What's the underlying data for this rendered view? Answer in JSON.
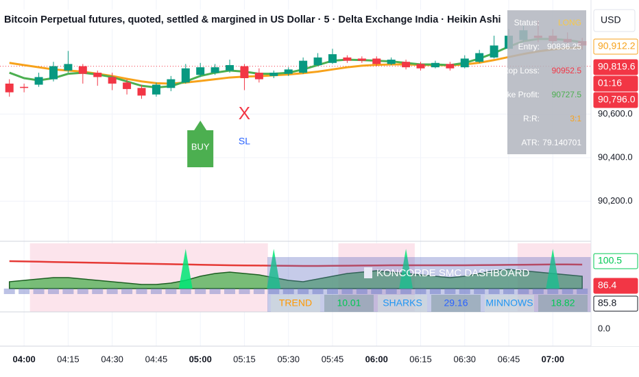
{
  "chart_data": [
    {
      "type": "candlestick",
      "title": "Bitcoin Perpetual futures, quoted, settled & margined in US Dollar · 5 · Delta Exchange India · Heikin Ashi",
      "currency": "USD",
      "x": [
        -5,
        0,
        5,
        10,
        15,
        20,
        25,
        30,
        35,
        40,
        45,
        50,
        55,
        60,
        65,
        70,
        75,
        80,
        85,
        90,
        95,
        100,
        105,
        110,
        115,
        120,
        125,
        130,
        135,
        140,
        145,
        150,
        155,
        160,
        165,
        170,
        175,
        180,
        185,
        190
      ],
      "open": [
        90740,
        90725,
        90735,
        90760,
        90800,
        90820,
        90790,
        90770,
        90745,
        90720,
        90690,
        90720,
        90745,
        90780,
        90790,
        90800,
        90820,
        90790,
        90775,
        90785,
        90790,
        90825,
        90835,
        90860,
        90855,
        90855,
        90830,
        90840,
        90830,
        90815,
        90830,
        90815,
        90840,
        90860,
        90900,
        90940,
        90960,
        90960,
        90945,
        90935
      ],
      "high": [
        90760,
        90740,
        90790,
        90840,
        90890,
        90830,
        90800,
        90790,
        90760,
        90735,
        90745,
        90775,
        90830,
        90835,
        90830,
        90850,
        90830,
        90810,
        90800,
        90815,
        90860,
        90880,
        90900,
        90870,
        90865,
        90865,
        90860,
        90850,
        90840,
        90845,
        90840,
        90870,
        90895,
        90960,
        90990,
        91010,
        91030,
        90990,
        90975,
        90950
      ],
      "low": [
        90680,
        90700,
        90725,
        90750,
        90790,
        90740,
        90730,
        90710,
        90690,
        90670,
        90680,
        90705,
        90740,
        90770,
        90780,
        90790,
        90710,
        90745,
        90765,
        90775,
        90785,
        90820,
        90830,
        90835,
        90835,
        90820,
        90825,
        90805,
        90800,
        90810,
        90800,
        90810,
        90835,
        90855,
        90895,
        90930,
        90930,
        90915,
        90915,
        90895
      ],
      "close": [
        90700,
        90720,
        90770,
        90820,
        90830,
        90785,
        90770,
        90740,
        90715,
        90685,
        90735,
        90760,
        90810,
        90815,
        90815,
        90825,
        90765,
        90760,
        90790,
        90805,
        90845,
        90860,
        90875,
        90845,
        90845,
        90830,
        90850,
        90815,
        90810,
        90835,
        90810,
        90855,
        90880,
        90915,
        90960,
        90985,
        90950,
        90935,
        90930,
        90915
      ],
      "up_color": "#089981",
      "down_color": "#f23645",
      "lines": [
        {
          "color": "#f7a21b",
          "values": [
            90835,
            90825,
            90815,
            90805,
            90800,
            90795,
            90785,
            90775,
            90762,
            90750,
            90742,
            90740,
            90745,
            90752,
            90760,
            90768,
            90772,
            90774,
            90778,
            90782,
            90788,
            90795,
            90805,
            90815,
            90822,
            90826,
            90828,
            90828,
            90826,
            90825,
            90824,
            90828,
            90836,
            90848,
            90862,
            90876,
            90888,
            90897,
            90903,
            90906
          ]
        },
        {
          "color": "#4caf50",
          "values": [
            90790,
            90765,
            90755,
            90765,
            90785,
            90790,
            90782,
            90770,
            90750,
            90730,
            90722,
            90728,
            90750,
            90775,
            90790,
            90800,
            90795,
            90785,
            90785,
            90790,
            90805,
            90825,
            90845,
            90850,
            90848,
            90845,
            90842,
            90835,
            90828,
            90828,
            90825,
            90835,
            90855,
            90880,
            90910,
            90935,
            90945,
            90945,
            90940,
            90930
          ]
        }
      ],
      "xlim": [
        -8.2,
        193
      ],
      "ylim": [
        90022,
        91124
      ],
      "yticks": [
        {
          "value": 90200,
          "label": "90,200.0"
        },
        {
          "value": 90400,
          "label": "90,400.0"
        },
        {
          "value": 90600,
          "label": "90,600.0"
        }
      ],
      "xticks": [
        {
          "value": 0,
          "label": "04:00"
        },
        {
          "value": 15,
          "label": "04:15"
        },
        {
          "value": 30,
          "label": "04:30"
        },
        {
          "value": 45,
          "label": "04:45"
        },
        {
          "value": 60,
          "label": "05:00"
        },
        {
          "value": 75,
          "label": "05:15"
        },
        {
          "value": 90,
          "label": "05:30"
        },
        {
          "value": 105,
          "label": "05:45"
        },
        {
          "value": 120,
          "label": "06:00"
        },
        {
          "value": 135,
          "label": "06:15"
        },
        {
          "value": 150,
          "label": "06:30"
        },
        {
          "value": 165,
          "label": "06:45"
        },
        {
          "value": 180,
          "label": "07:00"
        }
      ],
      "grid": true,
      "current_price": 90819.6,
      "price_tags": [
        {
          "label": "90,912.2",
          "color": "#f7a21b",
          "style": "outline"
        },
        {
          "label": "90,819.6",
          "color": "#f23645",
          "style": "filled"
        },
        {
          "label": "01:16",
          "color": "#f23645",
          "style": "filled"
        },
        {
          "label": "90,796.0",
          "color": "#f23645",
          "style": "filled"
        }
      ],
      "signals": [
        {
          "text": "BUY",
          "x": 60,
          "color": "#4caf50"
        },
        {
          "text": "X",
          "x": 75,
          "color": "#f23645"
        },
        {
          "text": "SL",
          "x": 75,
          "color": "#2962ff"
        }
      ],
      "info_table": [
        [
          "Status:",
          "LONG",
          "#f7c948"
        ],
        [
          "Entry:",
          "90836.25",
          "#ffffff"
        ],
        [
          "Stop Loss:",
          "90952.5",
          "#f23645"
        ],
        [
          "Take Profit:",
          "90727.5",
          "#4caf50"
        ],
        [
          "R:R:",
          "3:1",
          "#f7a21b"
        ],
        [
          "ATR:",
          "79.140701",
          "#ffffff"
        ]
      ]
    },
    {
      "type": "area",
      "x": [
        -5,
        0,
        5,
        10,
        15,
        20,
        25,
        30,
        35,
        40,
        45,
        50,
        55,
        60,
        65,
        70,
        75,
        80,
        85,
        90,
        95,
        100,
        105,
        110,
        115,
        120,
        125,
        130,
        135,
        140,
        145,
        150,
        155,
        160,
        165,
        170,
        175,
        180,
        185,
        190
      ],
      "series": [
        {
          "color": "#4caf50",
          "values": [
            82,
            83,
            84,
            85,
            85,
            84,
            83,
            82,
            81,
            80,
            80,
            81,
            83,
            86,
            88,
            89,
            88,
            87,
            85,
            83,
            82,
            84,
            86,
            88,
            89,
            90,
            89,
            88,
            87,
            86,
            85,
            86,
            88,
            90,
            91,
            90,
            89,
            88,
            87,
            86
          ]
        },
        {
          "color": "#e53935",
          "values": [
            97,
            96.8,
            96.6,
            96.4,
            96.2,
            96,
            95.8,
            95.6,
            95.4,
            95.2,
            95,
            94.8,
            94.6,
            94.4,
            94.2,
            94,
            93.9,
            93.8,
            93.7,
            93.6,
            93.5,
            93.5,
            93.6,
            93.7,
            93.8,
            93.9,
            94,
            94,
            94,
            94,
            94,
            94,
            94.1,
            94.2,
            94.3,
            94.4,
            94.5,
            94.6,
            94.6,
            94.5
          ]
        }
      ],
      "spikes": {
        "x": [
          55,
          85,
          130,
          180
        ],
        "values": [
          106,
          106,
          106,
          106
        ],
        "color": "#00e676"
      },
      "bands": [
        [
          2,
          83
        ],
        [
          107,
          133
        ],
        [
          168,
          193
        ]
      ],
      "xlim": [
        -8.2,
        193
      ],
      "ylim": [
        60,
        110
      ],
      "price_tags": [
        {
          "label": "100.5",
          "color": "#00c853",
          "style": "outline"
        },
        {
          "label": "86.4",
          "color": "#f23645",
          "style": "filled"
        },
        {
          "label": "85.8",
          "color": "#131722",
          "style": "outline"
        }
      ]
    },
    {
      "type": "line",
      "ylim": [
        -1,
        1
      ],
      "yticks": [
        {
          "value": 0,
          "label": "0.0"
        }
      ]
    }
  ],
  "dashboard": {
    "title": "KONCORDE SMC DASHBOARD",
    "cells": [
      [
        "TREND",
        "#ff9800"
      ],
      [
        "10.01",
        "#00c853"
      ],
      [
        "SHARKS",
        "#2196f3"
      ],
      [
        "29.16",
        "#2962ff"
      ],
      [
        "MINNOWS",
        "#2196f3"
      ],
      [
        "18.82",
        "#00c853"
      ]
    ]
  }
}
